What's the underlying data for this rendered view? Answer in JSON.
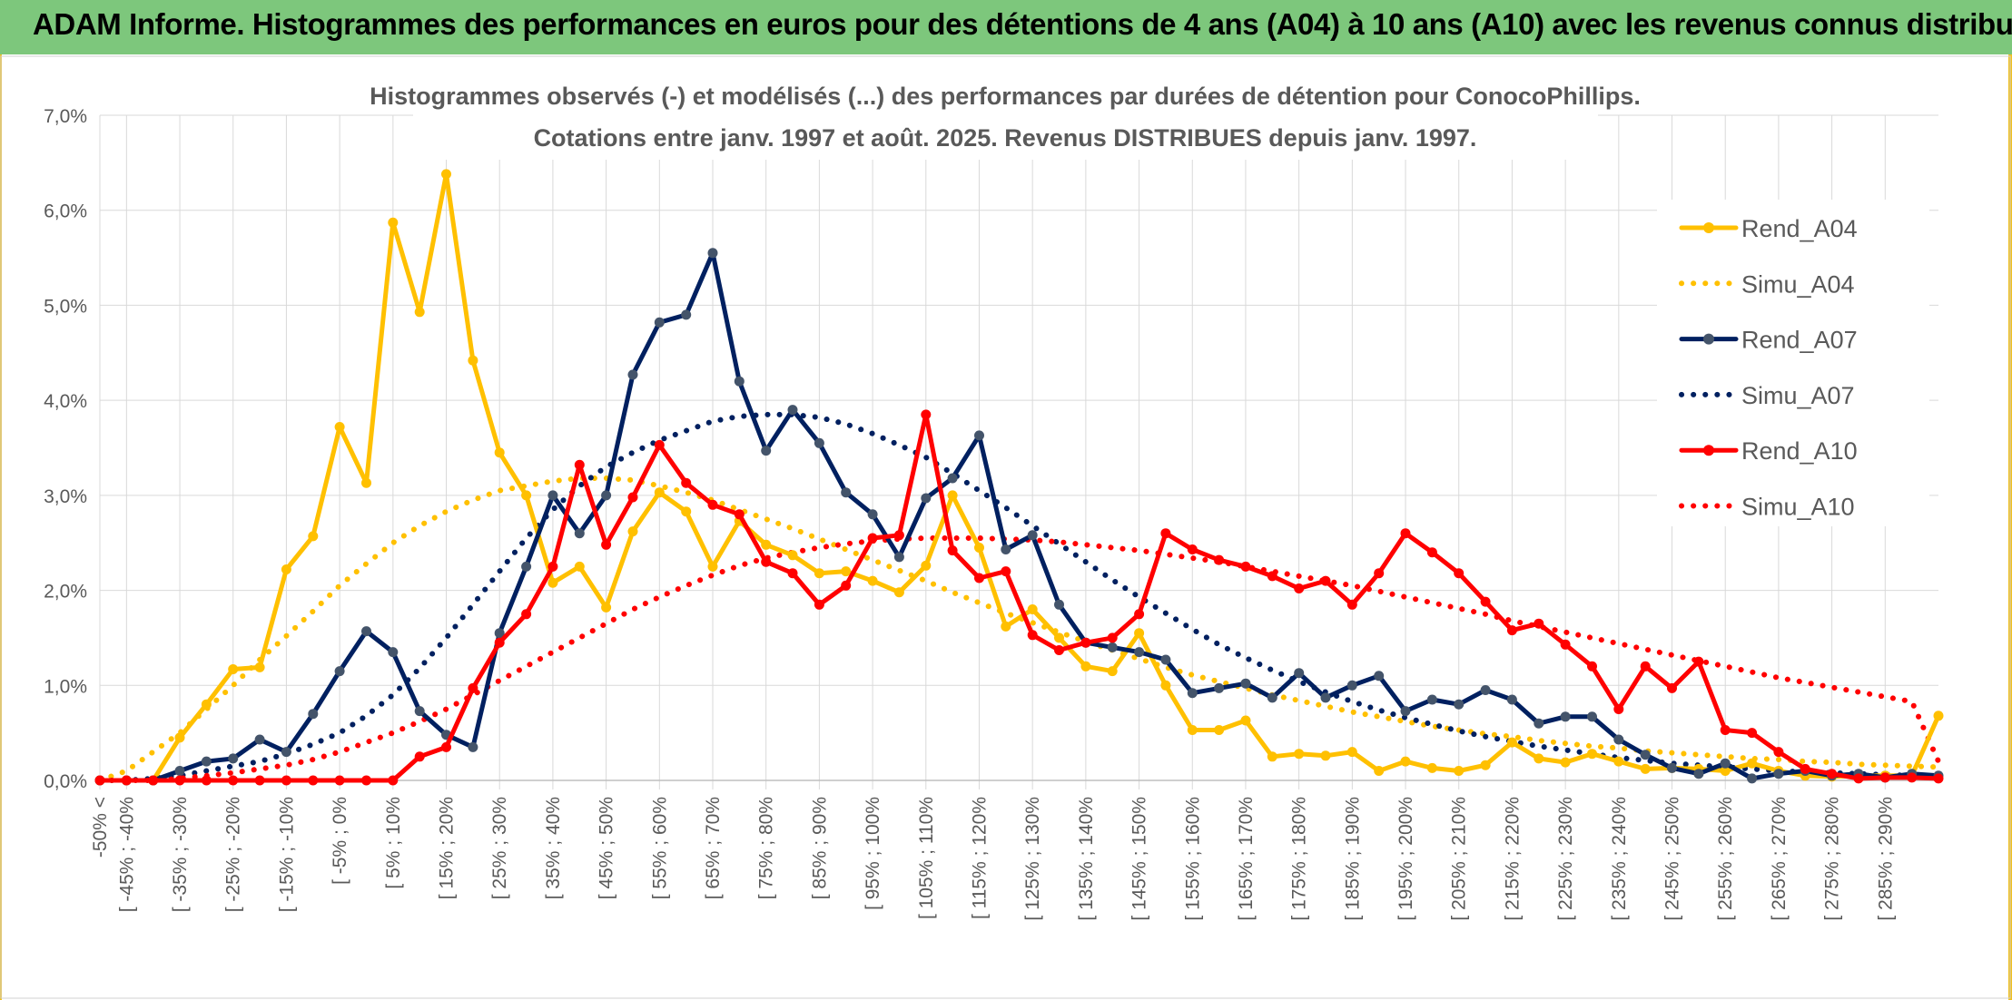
{
  "header": {
    "title": "ADAM Informe. Histogrammes des performances en euros pour des détentions de 4 ans (A04) à 10 ans (A10) avec les revenus connus distribués"
  },
  "colors": {
    "banner": "#7dc77c",
    "A04": "#FFC000",
    "A07": "#002060",
    "A10": "#FF0000",
    "grid": "#d9d9d9"
  },
  "chart_data": {
    "type": "line",
    "title": "Histogrammes observés (-) et modélisés (...) des performances par durées de détention pour ConocoPhillips.",
    "subtitle": "Cotations entre janv. 1997 et août. 2025. Revenus DISTRIBUES depuis janv. 1997.",
    "xlabel": "",
    "ylabel": "",
    "ylim": [
      0,
      0.07
    ],
    "yticks": [
      "0,0%",
      "1,0%",
      "2,0%",
      "3,0%",
      "4,0%",
      "5,0%",
      "6,0%",
      "7,0%"
    ],
    "grid": true,
    "legend_position": "right",
    "x_labels_shown": [
      "-50% <",
      "[ -45% ; -40%",
      "[ -35% ; -30%",
      "[ -25% ; -20%",
      "[ -15% ; -10%",
      "[ -5% ; 0%",
      "[ 5% ; 10%",
      "[ 15% ; 20%",
      "[ 25% ; 30%",
      "[ 35% ; 40%",
      "[ 45% ; 50%",
      "[ 55% ; 60%",
      "[ 65% ; 70%",
      "[ 75% ; 80%",
      "[ 85% ; 90%",
      "[ 95% ; 100%",
      "[ 105% ; 110%",
      "[ 115% ; 120%",
      "[ 125% ; 130%",
      "[ 135% ; 140%",
      "[ 145% ; 150%",
      "[ 155% ; 160%",
      "[ 165% ; 170%",
      "[ 175% ; 180%",
      "[ 185% ; 190%",
      "[ 195% ; 200%",
      "[ 205% ; 210%",
      "[ 215% ; 220%",
      "[ 225% ; 230%",
      "[ 235% ; 240%",
      "[ 245% ; 250%",
      "[ 255% ; 260%",
      "[ 265% ; 270%",
      "[ 275% ; 280%",
      "[ 285% ; 290%"
    ],
    "x_label_every": 2,
    "bin_count": 70,
    "series": [
      {
        "name": "Rend_A04",
        "style": "solid",
        "color": "#FFC000",
        "markers": true,
        "values": [
          0,
          0,
          0,
          0.0045,
          0.008,
          0.0117,
          0.0119,
          0.0222,
          0.0257,
          0.0372,
          0.0313,
          0.0587,
          0.0493,
          0.0638,
          0.0442,
          0.0345,
          0.03,
          0.0208,
          0.0225,
          0.0182,
          0.0262,
          0.0303,
          0.0283,
          0.0225,
          0.0273,
          0.0248,
          0.0237,
          0.0218,
          0.022,
          0.021,
          0.0198,
          0.0226,
          0.03,
          0.0245,
          0.0162,
          0.018,
          0.015,
          0.012,
          0.0115,
          0.0155,
          0.01,
          0.0053,
          0.0053,
          0.0063,
          0.0025,
          0.0028,
          0.0026,
          0.003,
          0.001,
          0.002,
          0.0013,
          0.001,
          0.0016,
          0.004,
          0.0023,
          0.0019,
          0.0028,
          0.002,
          0.0012,
          0.0013,
          0.0012,
          0.001,
          0.0018,
          0.001,
          0.0005,
          0.0004,
          0.0005,
          0.0005,
          0.0005,
          0.0068
        ]
      },
      {
        "name": "Simu_A04",
        "style": "dotted",
        "color": "#FFC000",
        "markers": false,
        "values": [
          0,
          0.001,
          0.003,
          0.005,
          0.0075,
          0.01,
          0.0127,
          0.0152,
          0.0178,
          0.0205,
          0.0228,
          0.025,
          0.0268,
          0.0283,
          0.0295,
          0.0305,
          0.031,
          0.0315,
          0.0318,
          0.0318,
          0.0316,
          0.031,
          0.0303,
          0.0295,
          0.0285,
          0.0275,
          0.0265,
          0.0254,
          0.0243,
          0.0232,
          0.0221,
          0.021,
          0.0198,
          0.0187,
          0.0176,
          0.0166,
          0.0156,
          0.0146,
          0.0137,
          0.0128,
          0.0119,
          0.0111,
          0.0104,
          0.0097,
          0.009,
          0.0084,
          0.0078,
          0.0072,
          0.0067,
          0.0062,
          0.0057,
          0.0053,
          0.0049,
          0.0046,
          0.0042,
          0.0039,
          0.0036,
          0.0034,
          0.0031,
          0.0029,
          0.0027,
          0.0025,
          0.0023,
          0.0022,
          0.002,
          0.0019,
          0.0017,
          0.0016,
          0.0015,
          0.0014
        ]
      },
      {
        "name": "Rend_A07",
        "style": "solid",
        "color": "#002060",
        "markers": true,
        "values": [
          0,
          0,
          0,
          0.001,
          0.002,
          0.0023,
          0.0043,
          0.003,
          0.007,
          0.0115,
          0.0157,
          0.0135,
          0.0073,
          0.0048,
          0.0035,
          0.0155,
          0.0225,
          0.03,
          0.026,
          0.03,
          0.0427,
          0.0482,
          0.049,
          0.0555,
          0.042,
          0.0347,
          0.039,
          0.0355,
          0.0303,
          0.028,
          0.0235,
          0.0297,
          0.0318,
          0.0363,
          0.0243,
          0.0258,
          0.0185,
          0.0145,
          0.014,
          0.0135,
          0.0127,
          0.0092,
          0.0097,
          0.0102,
          0.0087,
          0.0113,
          0.0087,
          0.01,
          0.011,
          0.0073,
          0.0085,
          0.008,
          0.0095,
          0.0085,
          0.006,
          0.0067,
          0.0067,
          0.0043,
          0.0027,
          0.0013,
          0.0007,
          0.0018,
          0.0002,
          0.0007,
          0.001,
          0.0005,
          0.0007,
          0.0003,
          0.0007,
          0.0005
        ]
      },
      {
        "name": "Simu_A07",
        "style": "dotted",
        "color": "#002060",
        "markers": false,
        "values": [
          0,
          0,
          0.0002,
          0.0005,
          0.001,
          0.0015,
          0.002,
          0.0028,
          0.0038,
          0.005,
          0.0068,
          0.009,
          0.0118,
          0.015,
          0.0185,
          0.022,
          0.0255,
          0.0285,
          0.031,
          0.033,
          0.0345,
          0.0358,
          0.0368,
          0.0378,
          0.0383,
          0.0385,
          0.0385,
          0.0382,
          0.0375,
          0.0365,
          0.0353,
          0.034,
          0.0323,
          0.0305,
          0.0287,
          0.0268,
          0.0249,
          0.023,
          0.0211,
          0.0193,
          0.0176,
          0.0159,
          0.0143,
          0.0129,
          0.0116,
          0.0104,
          0.0093,
          0.0083,
          0.0074,
          0.0066,
          0.0059,
          0.0052,
          0.0046,
          0.0041,
          0.0036,
          0.0032,
          0.0028,
          0.0024,
          0.0021,
          0.0018,
          0.0016,
          0.0014,
          0.0012,
          0.001,
          0.0009,
          0.0008,
          0.0007,
          0.0006,
          0.0005,
          0.0004
        ]
      },
      {
        "name": "Rend_A10",
        "style": "solid",
        "color": "#FF0000",
        "markers": true,
        "values": [
          0,
          0,
          0,
          0,
          0,
          0,
          0,
          0,
          0,
          0,
          0,
          0,
          0.0025,
          0.0035,
          0.0097,
          0.0145,
          0.0175,
          0.0225,
          0.0332,
          0.0248,
          0.0298,
          0.0353,
          0.0313,
          0.029,
          0.028,
          0.023,
          0.0218,
          0.0185,
          0.0205,
          0.0255,
          0.0258,
          0.0385,
          0.0242,
          0.0213,
          0.022,
          0.0153,
          0.0137,
          0.0145,
          0.015,
          0.0175,
          0.026,
          0.0243,
          0.0232,
          0.0225,
          0.0215,
          0.0202,
          0.021,
          0.0185,
          0.0218,
          0.026,
          0.024,
          0.0218,
          0.0188,
          0.0158,
          0.0165,
          0.0143,
          0.012,
          0.0075,
          0.012,
          0.0097,
          0.0125,
          0.0053,
          0.005,
          0.003,
          0.0012,
          0.0007,
          0.0002,
          0.0003,
          0.0003,
          0.0002
        ]
      },
      {
        "name": "Simu_A10",
        "style": "dotted",
        "color": "#FF0000",
        "markers": false,
        "values": [
          0,
          0,
          0,
          0.0002,
          0.0005,
          0.0008,
          0.0012,
          0.0016,
          0.0022,
          0.003,
          0.004,
          0.005,
          0.0062,
          0.0075,
          0.009,
          0.0105,
          0.012,
          0.0135,
          0.015,
          0.0165,
          0.018,
          0.0193,
          0.0205,
          0.0216,
          0.0226,
          0.0234,
          0.024,
          0.0245,
          0.0249,
          0.0252,
          0.0254,
          0.0255,
          0.0255,
          0.0255,
          0.0254,
          0.0253,
          0.0251,
          0.0248,
          0.0245,
          0.0242,
          0.0238,
          0.0234,
          0.023,
          0.0225,
          0.022,
          0.0215,
          0.021,
          0.0205,
          0.0199,
          0.0193,
          0.0187,
          0.0181,
          0.0175,
          0.0168,
          0.0162,
          0.0156,
          0.015,
          0.0144,
          0.0138,
          0.0132,
          0.0126,
          0.012,
          0.0114,
          0.0108,
          0.0103,
          0.0098,
          0.0093,
          0.0088,
          0.0083,
          0.002
        ]
      }
    ]
  }
}
